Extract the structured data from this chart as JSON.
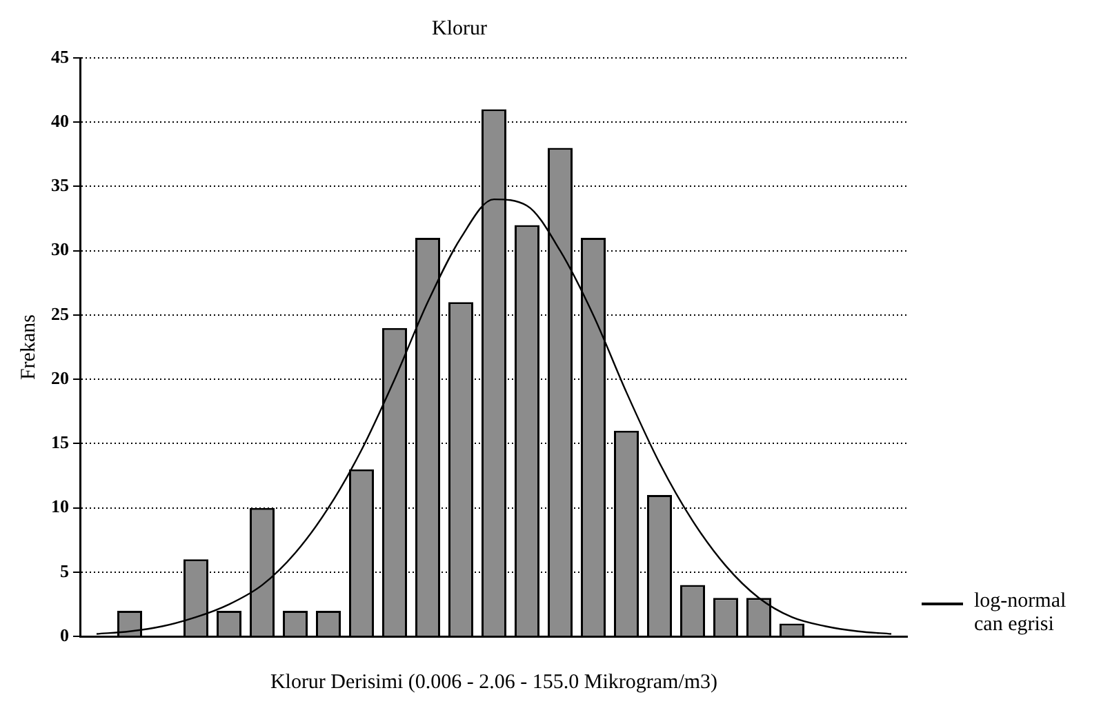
{
  "chart_data": {
    "type": "bar",
    "title": "Klorur",
    "xlabel": "Klorur Derisimi (0.006 - 2.06 - 155.0 Mikrogram/m3)",
    "ylabel": "Frekans",
    "categories": [
      null,
      null,
      null,
      null,
      null,
      null,
      null,
      null,
      null,
      null,
      null,
      null,
      null,
      null,
      null,
      null,
      null,
      null,
      null,
      null,
      null,
      null,
      null,
      null,
      null
    ],
    "series": [
      {
        "color": "#8c8c8c",
        "values": [
          0,
          2,
          0,
          6,
          2,
          10,
          2,
          2,
          13,
          24,
          31,
          26,
          41,
          32,
          38,
          31,
          16,
          11,
          4,
          3,
          3,
          1,
          0,
          0,
          0
        ]
      },
      {
        "type": "line",
        "name": "log-normal can egrisi",
        "color": "#000000",
        "values": [
          0.2,
          0.4,
          0.8,
          1.5,
          2.5,
          4,
          6.5,
          10,
          14.5,
          20,
          26,
          31,
          34,
          33.5,
          30,
          25,
          19,
          13.5,
          9,
          5.5,
          3,
          1.5,
          0.8,
          0.4,
          0.2
        ]
      }
    ],
    "ylim": [
      0,
      45
    ],
    "yticks": [
      0,
      5,
      10,
      15,
      20,
      25,
      30,
      35,
      40,
      45
    ],
    "grid": "y",
    "legend": "right",
    "marker": "none"
  }
}
